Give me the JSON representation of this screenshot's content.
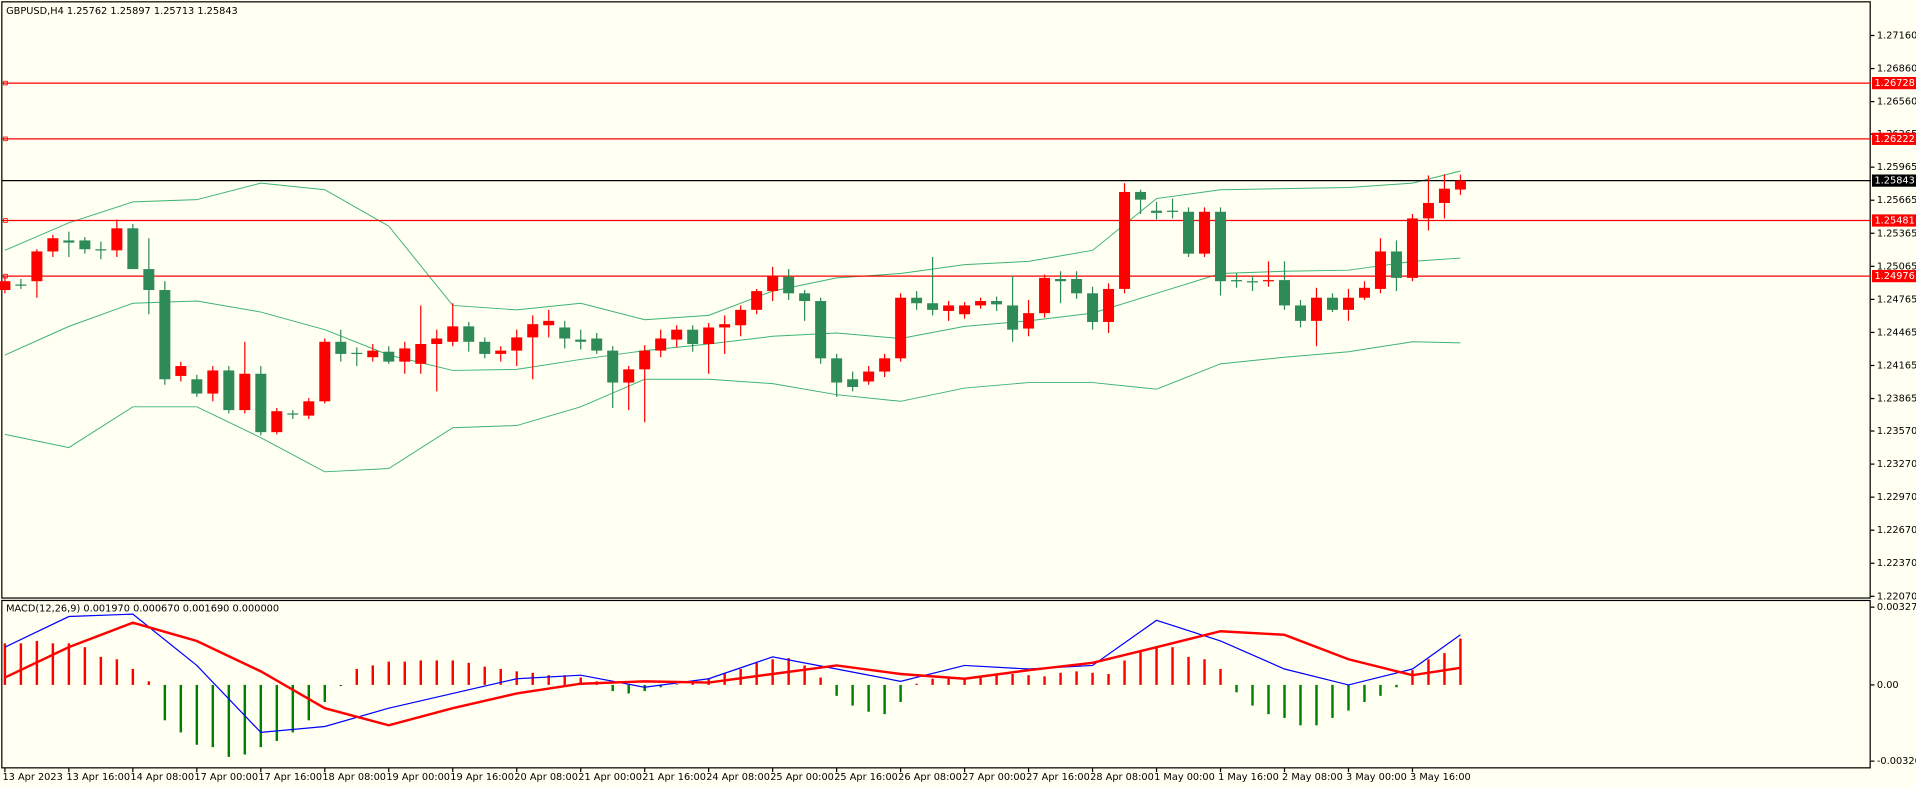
{
  "chart_data": [
    {
      "type": "candlestick",
      "title": "GBPUSD,H4  1.25762 1.25897 1.25713 1.25843",
      "categories": [
        "13 Apr 2023",
        null,
        null,
        null,
        "13 Apr 16:00",
        null,
        null,
        null,
        "14 Apr 08:00",
        null,
        null,
        null,
        "17 Apr 00:00",
        null,
        null,
        null,
        "17 Apr 16:00",
        null,
        null,
        null,
        "18 Apr 08:00",
        null,
        null,
        null,
        "19 Apr 00:00",
        null,
        null,
        null,
        "19 Apr 16:00",
        null,
        null,
        null,
        "20 Apr 08:00",
        null,
        null,
        null,
        "21 Apr 00:00",
        null,
        null,
        null,
        "21 Apr 16:00",
        null,
        null,
        null,
        "24 Apr 08:00",
        null,
        null,
        null,
        "25 Apr 00:00",
        null,
        null,
        null,
        "25 Apr 16:00",
        null,
        null,
        null,
        "26 Apr 08:00",
        null,
        null,
        null,
        "27 Apr 00:00",
        null,
        null,
        null,
        "27 Apr 16:00",
        null,
        null,
        null,
        "28 Apr 08:00",
        null,
        null,
        null,
        "1 May 00:00",
        null,
        null,
        null,
        "1 May 16:00",
        null,
        null,
        null,
        "2 May 08:00",
        null,
        null,
        null,
        "3 May 00:00",
        null,
        null,
        null,
        "3 May 16:00",
        null,
        null,
        null
      ],
      "open": [
        1.2485,
        1.249,
        1.2493,
        1.252,
        1.253,
        1.253,
        1.2522,
        1.2521,
        1.2541,
        1.2504,
        1.2485,
        1.2407,
        1.2404,
        1.2391,
        1.2412,
        1.2376,
        1.2409,
        1.2356,
        1.2373,
        1.2371,
        1.2384,
        1.2438,
        1.2428,
        1.2424,
        1.2429,
        1.242,
        1.2418,
        1.2436,
        1.2438,
        1.2452,
        1.2438,
        1.2427,
        1.243,
        1.2442,
        1.2453,
        1.2451,
        1.244,
        1.2441,
        1.243,
        1.2401,
        1.2413,
        1.243,
        1.244,
        1.2449,
        1.2436,
        1.2451,
        1.2453,
        1.2467,
        1.2484,
        1.2497,
        1.2482,
        1.2475,
        1.2423,
        1.2404,
        1.2402,
        1.2411,
        1.2423,
        1.2478,
        1.2473,
        1.2466,
        1.2463,
        1.2471,
        1.2475,
        1.2471,
        1.245,
        1.2464,
        1.2495,
        1.2495,
        1.2482,
        1.2456,
        1.2486,
        1.2574,
        1.2557,
        1.2557,
        1.2556,
        1.2518,
        1.2556,
        1.2494,
        1.2493,
        1.2493,
        1.2494,
        1.2471,
        1.2457,
        1.2478,
        1.2467,
        1.2478,
        1.2486,
        1.252,
        1.2496,
        1.255,
        1.2564,
        1.25762
      ],
      "high": [
        1.2497,
        1.2495,
        1.2522,
        1.2535,
        1.2538,
        1.2533,
        1.2529,
        1.2549,
        1.2545,
        1.2532,
        1.2493,
        1.242,
        1.2408,
        1.2416,
        1.2416,
        1.2438,
        1.2416,
        1.2378,
        1.2376,
        1.2387,
        1.2441,
        1.2449,
        1.2433,
        1.2436,
        1.2434,
        1.2438,
        1.2471,
        1.2449,
        1.2473,
        1.2456,
        1.2442,
        1.2434,
        1.2449,
        1.2462,
        1.2467,
        1.2457,
        1.2449,
        1.2446,
        1.2434,
        1.2416,
        1.2435,
        1.2449,
        1.2453,
        1.2453,
        1.2455,
        1.2462,
        1.2471,
        1.2486,
        1.2506,
        1.2504,
        1.2485,
        1.2478,
        1.2427,
        1.2411,
        1.2416,
        1.2427,
        1.2482,
        1.2484,
        1.2515,
        1.2475,
        1.2474,
        1.2478,
        1.2479,
        1.2498,
        1.2476,
        1.2499,
        1.2502,
        1.2502,
        1.2488,
        1.2491,
        1.2582,
        1.2576,
        1.2565,
        1.2568,
        1.256,
        1.256,
        1.256,
        1.25,
        1.2498,
        1.2511,
        1.2511,
        1.2476,
        1.2487,
        1.2482,
        1.2486,
        1.2493,
        1.2532,
        1.253,
        1.2554,
        1.2589,
        1.259,
        1.25897
      ],
      "low": [
        1.2482,
        1.2486,
        1.2478,
        1.2515,
        1.2515,
        1.2518,
        1.2513,
        1.2515,
        1.2504,
        1.2463,
        1.2399,
        1.2402,
        1.2388,
        1.2384,
        1.2373,
        1.2373,
        1.2353,
        1.2354,
        1.2368,
        1.2368,
        1.2382,
        1.242,
        1.2416,
        1.242,
        1.2418,
        1.2409,
        1.2409,
        1.2393,
        1.2434,
        1.2429,
        1.2423,
        1.242,
        1.2416,
        1.2404,
        1.2442,
        1.2432,
        1.2431,
        1.2427,
        1.2378,
        1.2376,
        1.2365,
        1.2424,
        1.2433,
        1.2429,
        1.2409,
        1.2427,
        1.2443,
        1.2463,
        1.2475,
        1.2476,
        1.2457,
        1.2418,
        1.2388,
        1.2393,
        1.2399,
        1.2406,
        1.242,
        1.2467,
        1.2462,
        1.2457,
        1.2459,
        1.2468,
        1.2466,
        1.2438,
        1.2443,
        1.246,
        1.2473,
        1.2477,
        1.2449,
        1.2446,
        1.2482,
        1.2554,
        1.2549,
        1.255,
        1.2515,
        1.2515,
        1.248,
        1.2487,
        1.2484,
        1.2488,
        1.2467,
        1.2451,
        1.2434,
        1.2465,
        1.2457,
        1.2476,
        1.2482,
        1.2484,
        1.2493,
        1.2539,
        1.255,
        1.25713
      ],
      "close": [
        1.2493,
        1.2489,
        1.252,
        1.2532,
        1.2528,
        1.2522,
        1.2521,
        1.2541,
        1.2504,
        1.2485,
        1.2404,
        1.2416,
        1.2391,
        1.2412,
        1.2376,
        1.2409,
        1.2356,
        1.2375,
        1.2372,
        1.2384,
        1.2438,
        1.2427,
        1.2427,
        1.243,
        1.242,
        1.2432,
        1.2436,
        1.2441,
        1.2452,
        1.2438,
        1.2427,
        1.243,
        1.2442,
        1.2454,
        1.2457,
        1.2441,
        1.2438,
        1.243,
        1.2401,
        1.2413,
        1.243,
        1.2441,
        1.2449,
        1.2436,
        1.2451,
        1.2454,
        1.2467,
        1.2484,
        1.2498,
        1.2482,
        1.2475,
        1.2423,
        1.2401,
        1.2397,
        1.2411,
        1.2423,
        1.2478,
        1.2473,
        1.2467,
        1.2471,
        1.2471,
        1.2475,
        1.2472,
        1.2449,
        1.2464,
        1.2496,
        1.2493,
        1.2482,
        1.2456,
        1.2486,
        1.2574,
        1.2567,
        1.2555,
        1.2556,
        1.2518,
        1.2556,
        1.2493,
        1.2493,
        1.2492,
        1.2494,
        1.2471,
        1.2457,
        1.2478,
        1.2467,
        1.2478,
        1.2487,
        1.252,
        1.2496,
        1.255,
        1.2564,
        1.2577,
        1.25843
      ],
      "up_color": "#ff0000",
      "down_color": "#2e8b57",
      "bands": [
        {
          "color": "#3cb371",
          "x": [
            0,
            4,
            8,
            12,
            16,
            20,
            24,
            28,
            32,
            36,
            40,
            44,
            48,
            52,
            56,
            60,
            64,
            68,
            72,
            76,
            80,
            84,
            88,
            91
          ],
          "values": [
            1.2521,
            1.2546,
            1.2565,
            1.2567,
            1.2582,
            1.2576,
            1.2543,
            1.2471,
            1.2467,
            1.2473,
            1.2458,
            1.2462,
            1.2484,
            1.2496,
            1.25,
            1.2508,
            1.2511,
            1.2521,
            1.2568,
            1.2576,
            1.2577,
            1.2578,
            1.2582,
            1.2593
          ]
        },
        {
          "color": "#3cb371",
          "x": [
            0,
            4,
            8,
            12,
            16,
            20,
            24,
            28,
            32,
            36,
            40,
            44,
            48,
            52,
            56,
            60,
            64,
            68,
            72,
            76,
            80,
            84,
            88,
            91
          ],
          "values": [
            1.2426,
            1.2452,
            1.2473,
            1.2475,
            1.2465,
            1.2449,
            1.2426,
            1.2412,
            1.2413,
            1.2422,
            1.243,
            1.2436,
            1.2443,
            1.2446,
            1.2441,
            1.2452,
            1.2457,
            1.2464,
            1.2482,
            1.25,
            1.2502,
            1.2503,
            1.2511,
            1.2514
          ]
        },
        {
          "color": "#3cb371",
          "x": [
            0,
            4,
            8,
            12,
            16,
            20,
            24,
            28,
            32,
            36,
            40,
            44,
            48,
            52,
            56,
            60,
            64,
            68,
            72,
            76,
            80,
            84,
            88,
            91
          ],
          "values": [
            1.2354,
            1.2342,
            1.2379,
            1.2379,
            1.2351,
            1.232,
            1.2323,
            1.236,
            1.2362,
            1.2379,
            1.2404,
            1.2404,
            1.24,
            1.239,
            1.2384,
            1.2396,
            1.2401,
            1.2401,
            1.2395,
            1.2418,
            1.2424,
            1.2429,
            1.2438,
            1.2437
          ]
        }
      ],
      "levels": [
        {
          "value": 1.26728,
          "label": "1.26728",
          "color": "#ff0000"
        },
        {
          "value": 1.26222,
          "label": "1.26222",
          "color": "#ff0000"
        },
        {
          "value": 1.25481,
          "label": "1.25481",
          "color": "#ff0000"
        },
        {
          "value": 1.24976,
          "label": "1.24976",
          "color": "#ff0000"
        },
        {
          "value": 1.25843,
          "label": "1.25843",
          "color": "#000000"
        }
      ],
      "ylim": [
        1.2206,
        1.2746
      ],
      "yticks": [
        {
          "value": 1.2716,
          "label": "1.27160"
        },
        {
          "value": 1.2686,
          "label": "1.26860"
        },
        {
          "value": 1.2656,
          "label": "1.26560"
        },
        {
          "value": 1.26265,
          "label": "1.26265"
        },
        {
          "value": 1.25965,
          "label": "1.25965"
        },
        {
          "value": 1.25665,
          "label": "1.25665"
        },
        {
          "value": 1.25365,
          "label": "1.25365"
        },
        {
          "value": 1.25065,
          "label": "1.25065"
        },
        {
          "value": 1.24765,
          "label": "1.24765"
        },
        {
          "value": 1.24465,
          "label": "1.24465"
        },
        {
          "value": 1.24165,
          "label": "1.24165"
        },
        {
          "value": 1.23865,
          "label": "1.23865"
        },
        {
          "value": 1.2357,
          "label": "1.23570"
        },
        {
          "value": 1.2327,
          "label": "1.23270"
        },
        {
          "value": 1.2297,
          "label": "1.22970"
        },
        {
          "value": 1.2267,
          "label": "1.22670"
        },
        {
          "value": 1.2237,
          "label": "1.22370"
        },
        {
          "value": 1.2207,
          "label": "1.22070"
        }
      ]
    },
    {
      "type": "macd",
      "title": "MACD(12,26,9) 0.001970 0.000670 0.001690 0.000000",
      "histogram": [
        0.00175,
        0.00175,
        0.00185,
        0.00175,
        0.00175,
        0.00159,
        0.00118,
        0.00108,
        0.00067,
        0.00015,
        -0.00149,
        -0.002,
        -0.00252,
        -0.00262,
        -0.00303,
        -0.00293,
        -0.00262,
        -0.00236,
        -0.002,
        -0.00149,
        -0.00072,
        -5e-05,
        0.00067,
        0.00082,
        0.00098,
        0.00098,
        0.00103,
        0.00103,
        0.00103,
        0.00093,
        0.00077,
        0.00067,
        0.00057,
        0.00051,
        0.00041,
        0.00041,
        0.00031,
        0.00015,
        -0.00026,
        -0.00036,
        -0.00026,
        -0.0001,
        0,
        0.0001,
        0.00026,
        0.00051,
        0.00067,
        0.00093,
        0.00108,
        0.00113,
        0.00082,
        0.00031,
        -0.00046,
        -0.00087,
        -0.00113,
        -0.00123,
        -0.00072,
        5e-05,
        0.00026,
        0.00031,
        0.00026,
        0.00031,
        0.00041,
        0.00046,
        0.00041,
        0.00036,
        0.00051,
        0.00057,
        0.00051,
        0.00046,
        0.00103,
        0.00144,
        0.00159,
        0.00159,
        0.00118,
        0.00108,
        0.00067,
        -0.00031,
        -0.00087,
        -0.00123,
        -0.00139,
        -0.0017,
        -0.0017,
        -0.00139,
        -0.00108,
        -0.00072,
        -0.00046,
        -0.0001,
        0.00062,
        0.00108,
        0.00134,
        0.00195
      ],
      "up_color": "#ff0000",
      "down_color": "#008000",
      "lines": [
        {
          "color": "#0000ff",
          "width": 1,
          "x": [
            0,
            4,
            8,
            12,
            16,
            20,
            24,
            28,
            32,
            36,
            40,
            44,
            48,
            52,
            56,
            60,
            64,
            68,
            72,
            76,
            80,
            84,
            88,
            91
          ],
          "values": [
            0.00159,
            0.00288,
            0.00298,
            0.00082,
            -0.002,
            -0.00175,
            -0.00098,
            -0.00036,
            0.00026,
            0.00041,
            -0.0001,
            0.00026,
            0.00118,
            0.00067,
            0.00015,
            0.00082,
            0.00067,
            0.00082,
            0.00272,
            0.00185,
            0.00067,
            0,
            0.00067,
            0.00211
          ]
        },
        {
          "color": "#ff0000",
          "width": 2,
          "x": [
            0,
            4,
            8,
            12,
            16,
            20,
            24,
            28,
            32,
            36,
            40,
            44,
            48,
            52,
            56,
            60,
            64,
            68,
            72,
            76,
            80,
            84,
            88,
            91
          ],
          "values": [
            0.00031,
            0.00159,
            0.00262,
            0.00185,
            0.00057,
            -0.00098,
            -0.0017,
            -0.00098,
            -0.00036,
            5e-05,
            0.00015,
            0.0001,
            0.00046,
            0.00082,
            0.00046,
            0.00026,
            0.00062,
            0.00093,
            0.00159,
            0.00226,
            0.00211,
            0.00108,
            0.00041,
            0.00072
          ]
        }
      ],
      "ylim": [
        -0.003466,
        0.00353
      ],
      "yticks": [
        0.003273,
        {
          "value": 0,
          "label": "0.00"
        },
        -0.003209
      ]
    }
  ]
}
